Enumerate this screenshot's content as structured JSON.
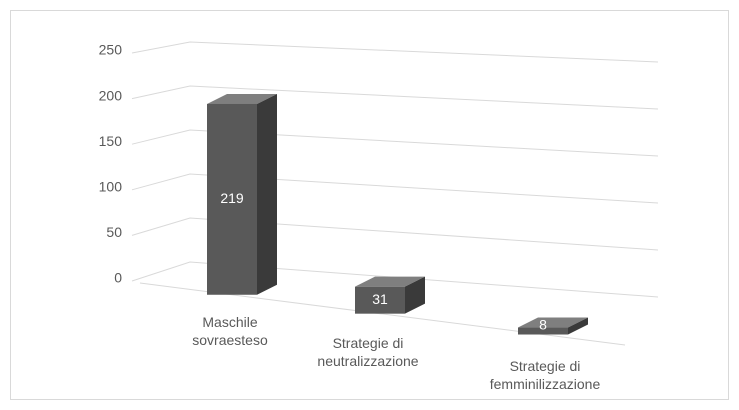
{
  "chart_data": {
    "type": "bar3d",
    "categories": [
      "Maschile sovraesteso",
      "Strategie di neutralizzazione",
      "Strategie di femminilizzazione"
    ],
    "values": [
      219,
      31,
      8
    ],
    "color": "#595959",
    "ylim": [
      0,
      250
    ],
    "yticks": [
      0,
      50,
      100,
      150,
      200,
      250
    ],
    "grid": true
  }
}
